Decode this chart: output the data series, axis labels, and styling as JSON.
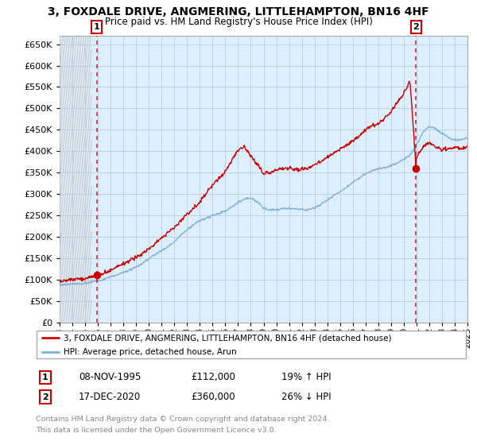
{
  "title": "3, FOXDALE DRIVE, ANGMERING, LITTLEHAMPTON, BN16 4HF",
  "subtitle": "Price paid vs. HM Land Registry's House Price Index (HPI)",
  "property_label": "3, FOXDALE DRIVE, ANGMERING, LITTLEHAMPTON, BN16 4HF (detached house)",
  "hpi_label": "HPI: Average price, detached house, Arun",
  "sale1_date": "08-NOV-1995",
  "sale1_price": 112000,
  "sale1_pct": "19% ↑ HPI",
  "sale2_date": "17-DEC-2020",
  "sale2_price": 360000,
  "sale2_pct": "26% ↓ HPI",
  "footer_line1": "Contains HM Land Registry data © Crown copyright and database right 2024.",
  "footer_line2": "This data is licensed under the Open Government Licence v3.0.",
  "red_color": "#cc0000",
  "blue_color": "#7aafd4",
  "hatch_color": "#c8c8c8",
  "bg_color": "#ddeeff",
  "grid_color": "#bbccdd",
  "ylim_max": 670000,
  "ytick_vals": [
    0,
    50000,
    100000,
    150000,
    200000,
    250000,
    300000,
    350000,
    400000,
    450000,
    500000,
    550000,
    600000,
    650000
  ],
  "sale1_x": 1995.92,
  "sale2_x": 2020.96,
  "xmin": 1993,
  "xmax": 2025,
  "hatch_end_x": 1995.5
}
